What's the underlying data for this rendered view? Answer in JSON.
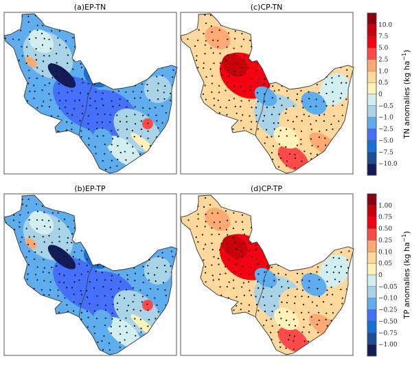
{
  "panels": [
    {
      "id": "a",
      "title": "(a)EP-TN",
      "tone": "cool"
    },
    {
      "id": "c",
      "title": "(c)CP-TN",
      "tone": "warm"
    },
    {
      "id": "b",
      "title": "(b)EP-TP",
      "tone": "cool"
    },
    {
      "id": "d",
      "title": "(d)CP-TP",
      "tone": "warm"
    }
  ],
  "colors": [
    "#8a0012",
    "#c8000a",
    "#f50010",
    "#ff4a4a",
    "#ffaa72",
    "#ffd89c",
    "#fff2b8",
    "#d2eeee",
    "#a9d3e6",
    "#5eadee",
    "#4470fc",
    "#1670d6",
    "#1c4f92",
    "#141c58"
  ],
  "colorbars": [
    {
      "label": "TN anomalies (kg ha",
      "unit_exp": "−1",
      "close": ")",
      "ticks": [
        "10.0",
        "7.5",
        "5.0",
        "2.5",
        "1.0",
        "0.5",
        "0",
        "−0.5",
        "−1.0",
        "−2.5",
        "−5.0",
        "−7.5",
        "−10.0"
      ]
    },
    {
      "label": "TP anomalies (kg ha",
      "unit_exp": "−1",
      "close": ")",
      "ticks": [
        "1.00",
        "0.75",
        "0.50",
        "0.25",
        "0.10",
        "0.05",
        "0",
        "−0.05",
        "−0.10",
        "−0.25",
        "−0.50",
        "−0.75",
        "−1.00"
      ]
    }
  ]
}
